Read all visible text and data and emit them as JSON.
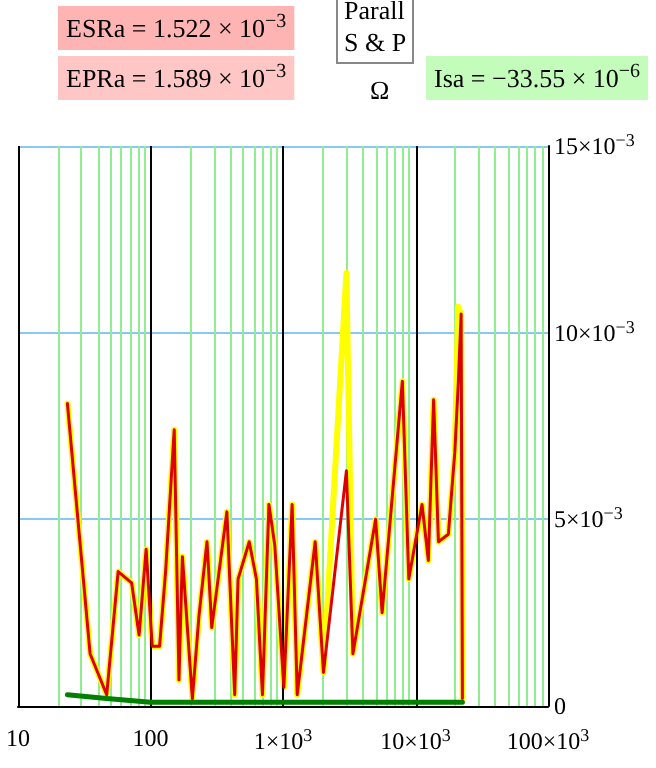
{
  "chart_data": {
    "type": "line",
    "annotations": [
      "ESRa = 1.522 × 10$^{−3}$",
      "EPRa = 1.589 × 10$^{−3}$",
      "Ω",
      "Isa = −33.55 × 10$^{−6}$",
      "Parall\nS & P"
    ],
    "log": "x",
    "xlim": [
      10,
      100000
    ],
    "xticks": [
      10,
      {
        "value": 20,
        "label": null
      },
      {
        "value": 30,
        "label": null
      },
      {
        "value": 40,
        "label": null
      },
      {
        "value": 50,
        "label": null
      },
      {
        "value": 60,
        "label": null
      },
      {
        "value": 70,
        "label": null
      },
      {
        "value": 80,
        "label": null
      },
      {
        "value": 90,
        "label": null
      },
      100,
      {
        "value": 200,
        "label": null
      },
      {
        "value": 300,
        "label": null
      },
      {
        "value": 400,
        "label": null
      },
      {
        "value": 500,
        "label": null
      },
      {
        "value": 600,
        "label": null
      },
      {
        "value": 700,
        "label": null
      },
      {
        "value": 800,
        "label": null
      },
      {
        "value": 900,
        "label": null
      },
      {
        "value": 1000,
        "label": "1×10$^{3}$"
      },
      {
        "value": 2000,
        "label": null
      },
      {
        "value": 3000,
        "label": null
      },
      {
        "value": 4000,
        "label": null
      },
      {
        "value": 5000,
        "label": null
      },
      {
        "value": 6000,
        "label": null
      },
      {
        "value": 7000,
        "label": null
      },
      {
        "value": 8000,
        "label": null
      },
      {
        "value": 9000,
        "label": null
      },
      {
        "value": 10000,
        "label": "10×10$^{3}$"
      },
      {
        "value": 20000,
        "label": null
      },
      {
        "value": 30000,
        "label": null
      },
      {
        "value": 40000,
        "label": null
      },
      {
        "value": 50000,
        "label": null
      },
      {
        "value": 60000,
        "label": null
      },
      {
        "value": 70000,
        "label": null
      },
      {
        "value": 80000,
        "label": null
      },
      {
        "value": 90000,
        "label": null
      },
      {
        "value": 100000,
        "label": "100×10$^{3}$"
      }
    ],
    "ylim": [
      0,
      0.015
    ],
    "yticks": [
      0,
      {
        "value": 0.005,
        "label": "5×10$^{−3}$"
      },
      {
        "value": 0.01,
        "label": "10×10$^{−3}$"
      },
      {
        "value": 0.015,
        "label": "15×10$^{−3}$"
      }
    ],
    "grid": true,
    "marker": "none",
    "line_style": "solid",
    "x": [
      23.6,
      35,
      46.7,
      57,
      72,
      82,
      92.7,
      103,
      117,
      130,
      151,
      164,
      174,
      207,
      232,
      267,
      290,
      377,
      432,
      458,
      556,
      630,
      700,
      783,
      867,
      1015,
      1172,
      1280,
      1750,
      2020,
      3010,
      3370,
      5000,
      5600,
      7960,
      8900,
      11200,
      12500,
      13700,
      14900,
      17700,
      19800,
      21000,
      22100,
      22600
    ],
    "series": [
      {
        "color": "#ffff00",
        "values": [
          0.0081,
          0.0014,
          0.0003,
          0.0036,
          0.0033,
          0.0019,
          0.0042,
          0.0016,
          0.0016,
          0.0036,
          0.0074,
          0.0007,
          0.004,
          0.0002,
          0.0024,
          0.0044,
          0.0021,
          0.0052,
          0.0003,
          0.0034,
          0.0044,
          0.0034,
          0.0003,
          0.0054,
          0.0043,
          0.0005,
          0.0054,
          0.0003,
          0.0044,
          0.0009,
          0.0116,
          0.0014,
          0.005,
          0.0025,
          0.0087,
          0.0034,
          0.0054,
          0.0039,
          0.0082,
          0.0044,
          0.0046,
          0.0068,
          0.0107,
          0.0105,
          0.0002
        ]
      },
      {
        "color": "#dd0000",
        "values": [
          0.0081,
          0.0014,
          0.0003,
          0.0036,
          0.0033,
          0.0019,
          0.0042,
          0.0016,
          0.0016,
          0.0036,
          0.0074,
          0.0007,
          0.004,
          0.0002,
          0.0024,
          0.0044,
          0.0021,
          0.0052,
          0.0003,
          0.0034,
          0.0044,
          0.0034,
          0.0003,
          0.0054,
          0.0043,
          0.0005,
          0.0054,
          0.0003,
          0.0044,
          0.0009,
          0.0063,
          0.0014,
          0.005,
          0.0025,
          0.0087,
          0.0034,
          0.0054,
          0.0039,
          0.0082,
          0.0044,
          0.0046,
          0.0068,
          0.0086,
          0.0105,
          0.0002
        ]
      },
      {
        "color": "#008000",
        "x": [
          23.6,
          46.7,
          100,
          1000,
          5000,
          22600
        ],
        "values": [
          0.0003,
          0.0002,
          0.0001,
          0.0001,
          0.0001,
          0.0001
        ]
      }
    ]
  }
}
